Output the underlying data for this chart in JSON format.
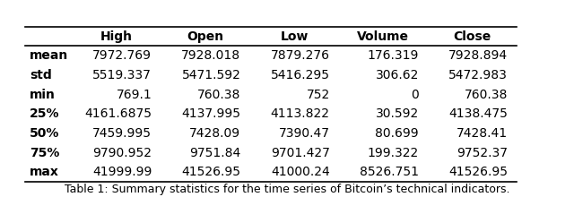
{
  "columns": [
    "High",
    "Open",
    "Low",
    "Volume",
    "Close"
  ],
  "rows": [
    [
      "mean",
      "7972.769",
      "7928.018",
      "7879.276",
      "176.319",
      "7928.894"
    ],
    [
      "std",
      "5519.337",
      "5471.592",
      "5416.295",
      "306.62",
      "5472.983"
    ],
    [
      "min",
      "769.1",
      "760.38",
      "752",
      "0",
      "760.38"
    ],
    [
      "25%",
      "4161.6875",
      "4137.995",
      "4113.822",
      "30.592",
      "4138.475"
    ],
    [
      "50%",
      "7459.995",
      "7428.09",
      "7390.47",
      "80.699",
      "7428.41"
    ],
    [
      "75%",
      "9790.952",
      "9751.84",
      "9701.427",
      "199.322",
      "9752.37"
    ],
    [
      "max",
      "41999.99",
      "41526.95",
      "41000.24",
      "8526.751",
      "41526.95"
    ]
  ],
  "bold_rows": [
    "25%",
    "50%",
    "75%"
  ],
  "caption": "Table 1: Summary statistics for the time series of Bitcoin’s technical indicators.",
  "fig_width": 6.4,
  "fig_height": 2.2,
  "dpi": 100
}
